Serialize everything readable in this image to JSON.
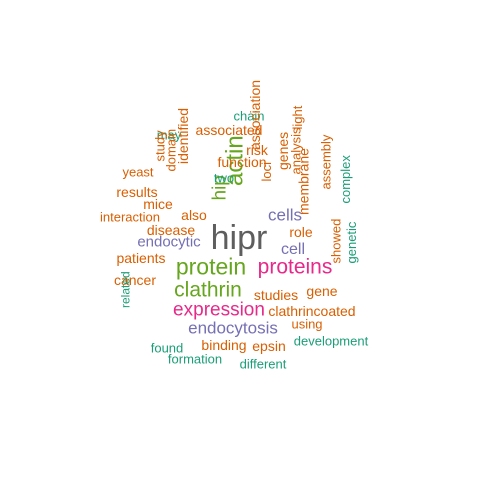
{
  "colors": {
    "hipr": "#5e5e5e",
    "green": "#66a61e",
    "magenta": "#e7298a",
    "purple": "#7570b3",
    "orange": "#d95f02",
    "teal": "#1b9e77"
  },
  "words": [
    {
      "text": "hipr",
      "color": "hipr"
    },
    {
      "text": "actin",
      "color": "green"
    },
    {
      "text": "protein",
      "color": "green"
    },
    {
      "text": "proteins",
      "color": "magenta"
    },
    {
      "text": "clathrin",
      "color": "green"
    },
    {
      "text": "expression",
      "color": "magenta"
    },
    {
      "text": "endocytosis",
      "color": "purple"
    },
    {
      "text": "hip",
      "color": "green"
    },
    {
      "text": "cells",
      "color": "purple"
    },
    {
      "text": "cell",
      "color": "purple"
    },
    {
      "text": "endocytic",
      "color": "purple"
    },
    {
      "text": "chain",
      "color": "teal"
    },
    {
      "text": "may",
      "color": "teal"
    },
    {
      "text": "associated",
      "color": "orange"
    },
    {
      "text": "light",
      "color": "orange"
    },
    {
      "text": "association",
      "color": "orange"
    },
    {
      "text": "risk",
      "color": "orange"
    },
    {
      "text": "genes",
      "color": "orange"
    },
    {
      "text": "study",
      "color": "orange"
    },
    {
      "text": "domain",
      "color": "orange"
    },
    {
      "text": "identified",
      "color": "orange"
    },
    {
      "text": "function",
      "color": "orange"
    },
    {
      "text": "yeast",
      "color": "orange"
    },
    {
      "text": "two",
      "color": "teal"
    },
    {
      "text": "loci",
      "color": "orange"
    },
    {
      "text": "analysis",
      "color": "orange"
    },
    {
      "text": "results",
      "color": "orange"
    },
    {
      "text": "mice",
      "color": "orange"
    },
    {
      "text": "interaction",
      "color": "orange"
    },
    {
      "text": "also",
      "color": "orange"
    },
    {
      "text": "assembly",
      "color": "orange"
    },
    {
      "text": "membrane",
      "color": "orange"
    },
    {
      "text": "complex",
      "color": "teal"
    },
    {
      "text": "disease",
      "color": "orange"
    },
    {
      "text": "role",
      "color": "orange"
    },
    {
      "text": "patients",
      "color": "orange"
    },
    {
      "text": "genetic",
      "color": "teal"
    },
    {
      "text": "showed",
      "color": "orange"
    },
    {
      "text": "cancer",
      "color": "orange"
    },
    {
      "text": "gene",
      "color": "orange"
    },
    {
      "text": "studies",
      "color": "orange"
    },
    {
      "text": "related",
      "color": "teal"
    },
    {
      "text": "clathrincoated",
      "color": "orange"
    },
    {
      "text": "using",
      "color": "orange"
    },
    {
      "text": "development",
      "color": "teal"
    },
    {
      "text": "found",
      "color": "teal"
    },
    {
      "text": "binding",
      "color": "orange"
    },
    {
      "text": "epsin",
      "color": "orange"
    },
    {
      "text": "formation",
      "color": "teal"
    },
    {
      "text": "different",
      "color": "teal"
    }
  ]
}
